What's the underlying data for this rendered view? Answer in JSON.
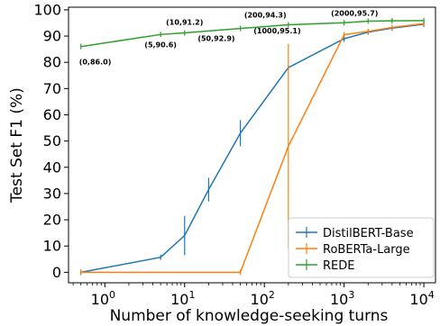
{
  "chart_data": {
    "type": "line",
    "xscale": "log",
    "xlabel": "Number of knowledge-seeking turns",
    "ylabel": "Test Set F1 (%)",
    "xlim": [
      0.35,
      14000
    ],
    "ylim": [
      -4,
      101
    ],
    "x_ticks": [
      {
        "value": 1,
        "base": "10",
        "exp": "0"
      },
      {
        "value": 10,
        "base": "10",
        "exp": "1"
      },
      {
        "value": 100,
        "base": "10",
        "exp": "2"
      },
      {
        "value": 1000,
        "base": "10",
        "exp": "3"
      },
      {
        "value": 10000,
        "base": "10",
        "exp": "4"
      }
    ],
    "y_ticks": [
      0,
      10,
      20,
      30,
      40,
      50,
      60,
      70,
      80,
      90,
      100
    ],
    "grid": false,
    "legend_position": "lower-right",
    "series": [
      {
        "name": "DistilBERT-Base",
        "color": "#1f77b4",
        "points": [
          {
            "x": 0.5,
            "y": 0,
            "err": 0
          },
          {
            "x": 5,
            "y": 5.7,
            "err": 1.0
          },
          {
            "x": 10,
            "y": 14,
            "err": 7.5
          },
          {
            "x": 20,
            "y": 31.5,
            "err": 4.5
          },
          {
            "x": 50,
            "y": 53,
            "err": 5.0
          },
          {
            "x": 200,
            "y": 78,
            "err": 0
          },
          {
            "x": 1000,
            "y": 89,
            "err": 1.2
          },
          {
            "x": 2000,
            "y": 91.5,
            "err": 0.8
          },
          {
            "x": 4000,
            "y": 93,
            "err": 0.5
          },
          {
            "x": 10000,
            "y": 94.5,
            "err": 0.5
          }
        ]
      },
      {
        "name": "RoBERTa-Large",
        "color": "#ff7f0e",
        "points": [
          {
            "x": 0.5,
            "y": 0,
            "err": 0
          },
          {
            "x": 50,
            "y": 0,
            "err": 0
          },
          {
            "x": 200,
            "y": 48,
            "err": 39
          },
          {
            "x": 1000,
            "y": 90.5,
            "err": 1.0
          },
          {
            "x": 2000,
            "y": 91.8,
            "err": 0.8
          },
          {
            "x": 4000,
            "y": 93.3,
            "err": 0.5
          },
          {
            "x": 10000,
            "y": 94.8,
            "err": 0.5
          }
        ]
      },
      {
        "name": "REDE",
        "color": "#2ca02c",
        "points": [
          {
            "x": 0.5,
            "y": 86.0,
            "err": 0
          },
          {
            "x": 5,
            "y": 90.6,
            "err": 0.5
          },
          {
            "x": 10,
            "y": 91.2,
            "err": 0.8
          },
          {
            "x": 50,
            "y": 92.9,
            "err": 0.3
          },
          {
            "x": 200,
            "y": 94.3,
            "err": 0.3
          },
          {
            "x": 1000,
            "y": 95.1,
            "err": 0.3
          },
          {
            "x": 2000,
            "y": 95.7,
            "err": 0.3
          },
          {
            "x": 4000,
            "y": 95.8,
            "err": 0.3
          },
          {
            "x": 10000,
            "y": 95.9,
            "err": 0.3
          }
        ]
      }
    ],
    "annotations": [
      {
        "text": "(0,86.0)",
        "x": 0.5,
        "y": 86.0,
        "dx": -2,
        "dy": 20,
        "anchor": "start"
      },
      {
        "text": "(5,90.6)",
        "x": 5,
        "y": 90.6,
        "dx": 0,
        "dy": 14,
        "anchor": "middle"
      },
      {
        "text": "(10,91.2)",
        "x": 10,
        "y": 91.2,
        "dx": 0,
        "dy": -9,
        "anchor": "middle"
      },
      {
        "text": "(50,92.9)",
        "x": 50,
        "y": 92.9,
        "dx": -6,
        "dy": 14,
        "anchor": "end"
      },
      {
        "text": "(200,94.3)",
        "x": 200,
        "y": 94.3,
        "dx": -49,
        "dy": -8,
        "anchor": "start"
      },
      {
        "text": "(1000,95.1)",
        "x": 1000,
        "y": 95.1,
        "dx": -48,
        "dy": 12,
        "anchor": "end"
      },
      {
        "text": "(2000,95.7)",
        "x": 2000,
        "y": 95.7,
        "dx": -15,
        "dy": -6,
        "anchor": "middle"
      }
    ]
  }
}
